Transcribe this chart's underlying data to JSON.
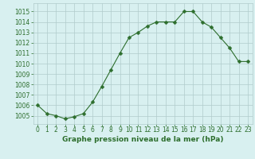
{
  "x": [
    0,
    1,
    2,
    3,
    4,
    5,
    6,
    7,
    8,
    9,
    10,
    11,
    12,
    13,
    14,
    15,
    16,
    17,
    18,
    19,
    20,
    21,
    22,
    23
  ],
  "y": [
    1006.0,
    1005.2,
    1005.0,
    1004.7,
    1004.9,
    1005.2,
    1006.3,
    1007.8,
    1009.4,
    1011.0,
    1012.5,
    1013.0,
    1013.6,
    1014.0,
    1014.0,
    1014.0,
    1015.0,
    1015.0,
    1014.0,
    1013.5,
    1012.5,
    1011.5,
    1010.2,
    1010.2
  ],
  "line_color": "#2d6e2d",
  "marker": "D",
  "marker_size": 2.5,
  "bg_color": "#d8f0f0",
  "grid_color": "#b0cccc",
  "xlabel": "Graphe pression niveau de la mer (hPa)",
  "ylim": [
    1004.2,
    1015.8
  ],
  "yticks": [
    1005,
    1006,
    1007,
    1008,
    1009,
    1010,
    1011,
    1012,
    1013,
    1014,
    1015
  ],
  "xticks": [
    0,
    1,
    2,
    3,
    4,
    5,
    6,
    7,
    8,
    9,
    10,
    11,
    12,
    13,
    14,
    15,
    16,
    17,
    18,
    19,
    20,
    21,
    22,
    23
  ],
  "xtick_labels": [
    "0",
    "1",
    "2",
    "3",
    "4",
    "5",
    "6",
    "7",
    "8",
    "9",
    "10",
    "11",
    "12",
    "13",
    "14",
    "15",
    "16",
    "17",
    "18",
    "19",
    "20",
    "21",
    "22",
    "23"
  ],
  "xlabel_fontsize": 6.5,
  "tick_fontsize": 5.5,
  "xlabel_color": "#2d6e2d",
  "tick_color": "#2d6e2d",
  "xlim": [
    -0.5,
    23.5
  ]
}
